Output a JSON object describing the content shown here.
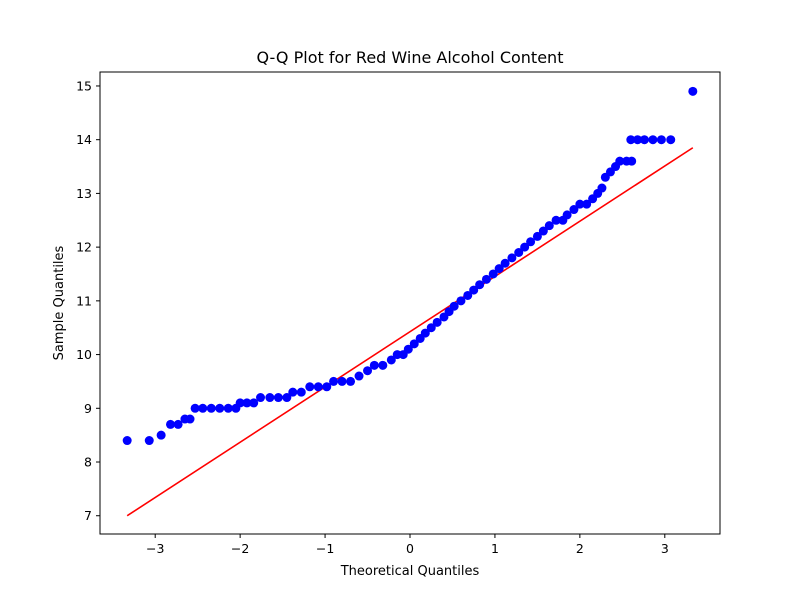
{
  "chart_data": {
    "type": "scatter",
    "title": "Q-Q Plot for Red Wine Alcohol Content",
    "xlabel": "Theoretical Quantiles",
    "ylabel": "Sample Quantiles",
    "xlim": [
      -3.65,
      3.65
    ],
    "ylim": [
      6.66,
      15.26
    ],
    "x_ticks": [
      -3,
      -2,
      -1,
      0,
      1,
      2,
      3
    ],
    "x_tick_labels": [
      "−3",
      "−2",
      "−1",
      "0",
      "1",
      "2",
      "3"
    ],
    "y_ticks": [
      7,
      8,
      9,
      10,
      11,
      12,
      13,
      14,
      15
    ],
    "y_tick_labels": [
      "7",
      "8",
      "9",
      "10",
      "11",
      "12",
      "13",
      "14",
      "15"
    ],
    "grid": false,
    "legend": "none",
    "points": [
      [
        -3.33,
        8.4
      ],
      [
        -3.07,
        8.4
      ],
      [
        -2.93,
        8.5
      ],
      [
        -2.82,
        8.7
      ],
      [
        -2.73,
        8.7
      ],
      [
        -2.65,
        8.8
      ],
      [
        -2.59,
        8.8
      ],
      [
        -2.53,
        9.0
      ],
      [
        -2.44,
        9.0
      ],
      [
        -2.34,
        9.0
      ],
      [
        -2.24,
        9.0
      ],
      [
        -2.14,
        9.0
      ],
      [
        -2.05,
        9.0
      ],
      [
        -2.0,
        9.1
      ],
      [
        -1.92,
        9.1
      ],
      [
        -1.84,
        9.1
      ],
      [
        -1.76,
        9.2
      ],
      [
        -1.65,
        9.2
      ],
      [
        -1.55,
        9.2
      ],
      [
        -1.45,
        9.2
      ],
      [
        -1.38,
        9.3
      ],
      [
        -1.28,
        9.3
      ],
      [
        -1.18,
        9.4
      ],
      [
        -1.08,
        9.4
      ],
      [
        -0.98,
        9.4
      ],
      [
        -0.9,
        9.5
      ],
      [
        -0.8,
        9.5
      ],
      [
        -0.7,
        9.5
      ],
      [
        -0.6,
        9.6
      ],
      [
        -0.5,
        9.7
      ],
      [
        -0.42,
        9.8
      ],
      [
        -0.32,
        9.8
      ],
      [
        -0.22,
        9.9
      ],
      [
        -0.15,
        10.0
      ],
      [
        -0.08,
        10.0
      ],
      [
        -0.02,
        10.1
      ],
      [
        0.05,
        10.2
      ],
      [
        0.12,
        10.3
      ],
      [
        0.18,
        10.4
      ],
      [
        0.25,
        10.5
      ],
      [
        0.32,
        10.6
      ],
      [
        0.4,
        10.7
      ],
      [
        0.46,
        10.8
      ],
      [
        0.52,
        10.9
      ],
      [
        0.6,
        11.0
      ],
      [
        0.68,
        11.1
      ],
      [
        0.75,
        11.2
      ],
      [
        0.82,
        11.3
      ],
      [
        0.9,
        11.4
      ],
      [
        0.98,
        11.5
      ],
      [
        1.05,
        11.6
      ],
      [
        1.12,
        11.7
      ],
      [
        1.2,
        11.8
      ],
      [
        1.28,
        11.9
      ],
      [
        1.35,
        12.0
      ],
      [
        1.42,
        12.1
      ],
      [
        1.5,
        12.2
      ],
      [
        1.57,
        12.3
      ],
      [
        1.64,
        12.4
      ],
      [
        1.72,
        12.5
      ],
      [
        1.8,
        12.5
      ],
      [
        1.85,
        12.6
      ],
      [
        1.93,
        12.7
      ],
      [
        2.0,
        12.8
      ],
      [
        2.08,
        12.8
      ],
      [
        2.15,
        12.9
      ],
      [
        2.21,
        13.0
      ],
      [
        2.26,
        13.1
      ],
      [
        2.3,
        13.3
      ],
      [
        2.36,
        13.4
      ],
      [
        2.42,
        13.5
      ],
      [
        2.47,
        13.6
      ],
      [
        2.55,
        13.6
      ],
      [
        2.61,
        13.6
      ],
      [
        2.6,
        14.0
      ],
      [
        2.68,
        14.0
      ],
      [
        2.76,
        14.0
      ],
      [
        2.86,
        14.0
      ],
      [
        2.96,
        14.0
      ],
      [
        3.07,
        14.0
      ],
      [
        3.33,
        14.9
      ]
    ],
    "reference_line": {
      "start": [
        -3.33,
        7.0
      ],
      "end": [
        3.33,
        13.85
      ]
    },
    "colors": {
      "points": "#0000ff",
      "line": "#ff0000",
      "axes": "#000000"
    }
  }
}
